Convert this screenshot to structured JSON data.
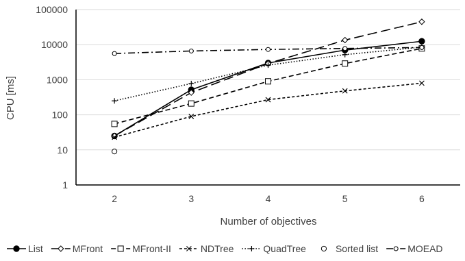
{
  "chart_data": {
    "type": "line",
    "title": "",
    "xlabel": "Number of objectives",
    "ylabel": "CPU [ms]",
    "y_scale": "log",
    "ylim": [
      1,
      100000
    ],
    "grid": "horizontal",
    "legend_position": "bottom",
    "x": [
      2,
      3,
      4,
      5,
      6
    ],
    "x_tick_labels": [
      "2",
      "3",
      "4",
      "5",
      "6"
    ],
    "y_tick_labels": [
      "1",
      "10",
      "100",
      "1000",
      "10000",
      "100000"
    ],
    "y_tick_values": [
      1,
      10,
      100,
      1000,
      10000,
      100000
    ],
    "series": [
      {
        "name": "List",
        "values": [
          25,
          520,
          3000,
          7000,
          12500
        ],
        "dash": "solid",
        "marker": "filled-circle"
      },
      {
        "name": "MFront",
        "values": [
          25,
          430,
          2900,
          13500,
          45000
        ],
        "dash": "longdash",
        "marker": "diamond"
      },
      {
        "name": "MFront-II",
        "values": [
          55,
          210,
          900,
          2900,
          7800
        ],
        "dash": "dash",
        "marker": "square"
      },
      {
        "name": "NDTree",
        "values": [
          23,
          90,
          270,
          480,
          800
        ],
        "dash": "shortdash",
        "marker": "x"
      },
      {
        "name": "QuadTree",
        "values": [
          250,
          780,
          2600,
          5200,
          8500
        ],
        "dash": "dot",
        "marker": "plus"
      },
      {
        "name": "Sorted list",
        "values": [
          9,
          null,
          null,
          null,
          null
        ],
        "dash": "none",
        "marker": "open-circle"
      },
      {
        "name": "MOEAD",
        "values": [
          5600,
          6600,
          7300,
          7800,
          8300
        ],
        "dash": "dashdot",
        "marker": "small-circle"
      }
    ]
  }
}
